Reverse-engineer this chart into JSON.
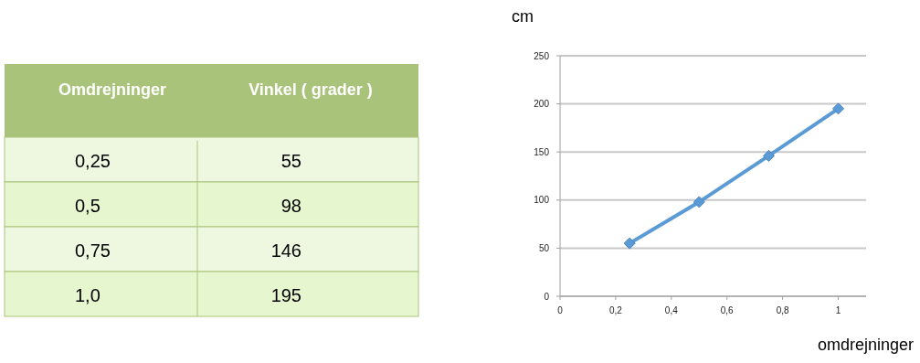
{
  "chart_data": {
    "type": "line",
    "xlabel": "omdrejninger",
    "ylabel": "cm",
    "annotations": [
      "Omdrejninger",
      "Vinkel ( grader )",
      "0,25",
      "55",
      "0,5",
      "98",
      "0,75",
      "146",
      "1,0",
      "195"
    ],
    "x": [
      0.25,
      0.5,
      0.75,
      1
    ],
    "series": [
      {
        "color": "#5b9bd5",
        "values": [
          55,
          98,
          146,
          195
        ]
      }
    ],
    "xlim": [
      0,
      1.1
    ],
    "xticks": [
      0,
      {
        "value": 0.2,
        "label": "0,2"
      },
      {
        "value": 0.4,
        "label": "0,4"
      },
      {
        "value": 0.6,
        "label": "0,6"
      },
      {
        "value": 0.8,
        "label": "0,8"
      },
      1
    ],
    "ylim": [
      0,
      250
    ],
    "yticks": [
      0,
      50,
      100,
      150,
      200,
      250
    ],
    "grid": "y",
    "marker": "diamond",
    "line_style": "solid"
  }
}
